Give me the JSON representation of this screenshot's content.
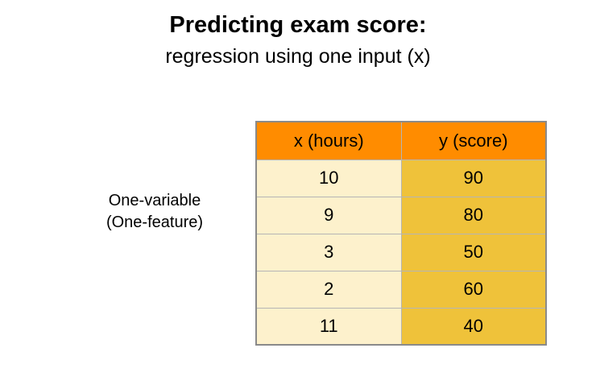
{
  "slide": {
    "title": "Predicting exam score:",
    "subtitle": "regression using one input (x)",
    "side_label_line1": "One-variable",
    "side_label_line2": "(One-feature)"
  },
  "table": {
    "headers": [
      "x (hours)",
      "y (score)"
    ],
    "rows": [
      [
        "10",
        "90"
      ],
      [
        "9",
        "80"
      ],
      [
        "3",
        "50"
      ],
      [
        "2",
        "60"
      ],
      [
        "11",
        "40"
      ]
    ],
    "colors": {
      "header": "#ff8c00",
      "x_column": "#fdf1cc",
      "y_column": "#efc23a",
      "border": "#8a8a8a"
    }
  }
}
